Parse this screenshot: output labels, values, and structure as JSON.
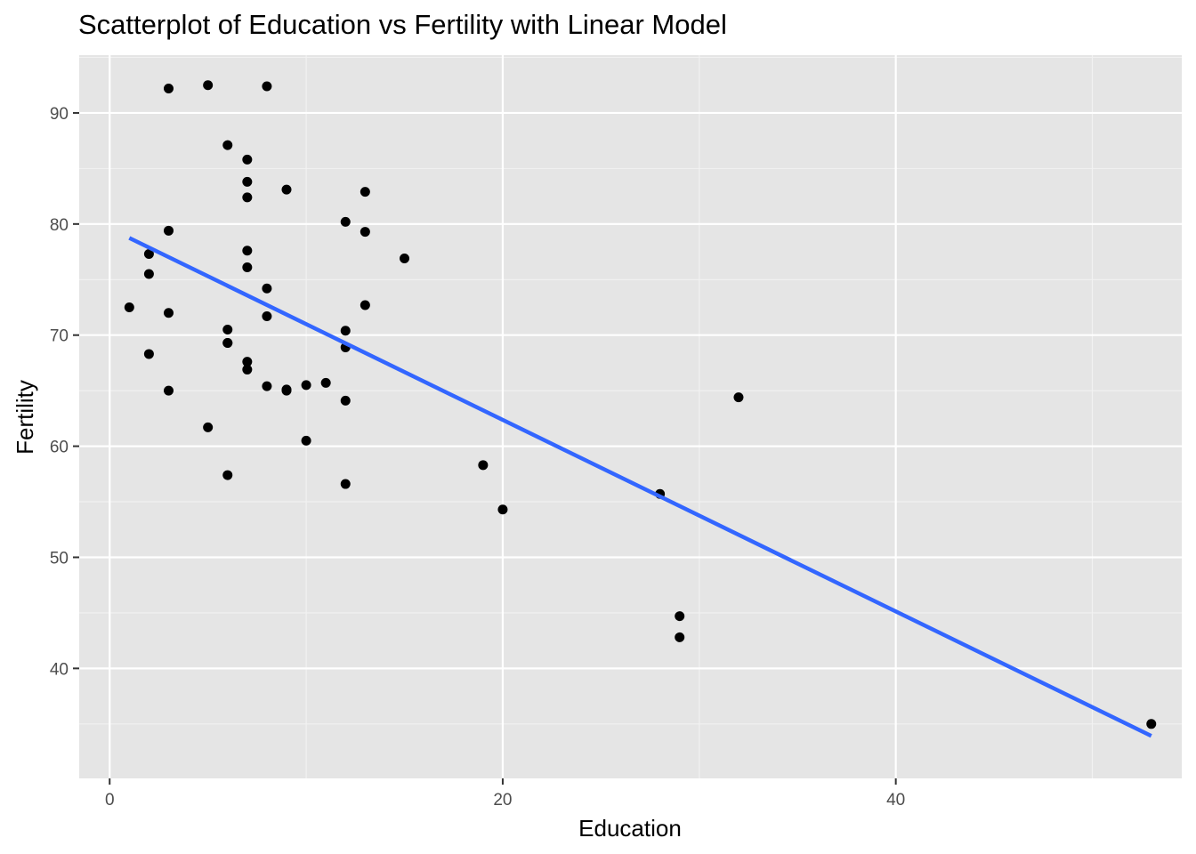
{
  "chart_data": {
    "type": "scatter",
    "title": "Scatterplot of Education vs Fertility with Linear Model",
    "xlabel": "Education",
    "ylabel": "Fertility",
    "xlim": [
      -1.55,
      54.55
    ],
    "ylim": [
      30.1,
      95.2
    ],
    "x_ticks": [
      0,
      20,
      40
    ],
    "x_tick_labels": [
      "0",
      "20",
      "40"
    ],
    "x_minor_ticks": [
      10,
      30,
      50
    ],
    "y_ticks": [
      40,
      50,
      60,
      70,
      80,
      90
    ],
    "y_tick_labels": [
      "40",
      "50",
      "60",
      "70",
      "80",
      "90"
    ],
    "y_minor_ticks": [
      35,
      45,
      55,
      65,
      75,
      85,
      95
    ],
    "grid": true,
    "background": "#e5e5e5",
    "point_color": "#000000",
    "line_color": "#3366ff",
    "points": [
      {
        "x": 12,
        "y": 80.2
      },
      {
        "x": 9,
        "y": 83.1
      },
      {
        "x": 5,
        "y": 92.5
      },
      {
        "x": 7,
        "y": 85.8
      },
      {
        "x": 15,
        "y": 76.9
      },
      {
        "x": 7,
        "y": 76.1
      },
      {
        "x": 7,
        "y": 83.8
      },
      {
        "x": 8,
        "y": 92.4
      },
      {
        "x": 7,
        "y": 82.4
      },
      {
        "x": 13,
        "y": 82.9
      },
      {
        "x": 6,
        "y": 87.1
      },
      {
        "x": 12,
        "y": 64.1
      },
      {
        "x": 7,
        "y": 66.9
      },
      {
        "x": 12,
        "y": 68.9
      },
      {
        "x": 5,
        "y": 61.7
      },
      {
        "x": 2,
        "y": 68.3
      },
      {
        "x": 8,
        "y": 71.7
      },
      {
        "x": 28,
        "y": 55.7
      },
      {
        "x": 20,
        "y": 54.3
      },
      {
        "x": 9,
        "y": 65.1
      },
      {
        "x": 10,
        "y": 65.5
      },
      {
        "x": 3,
        "y": 65.0
      },
      {
        "x": 12,
        "y": 56.6
      },
      {
        "x": 6,
        "y": 57.4
      },
      {
        "x": 1,
        "y": 72.5
      },
      {
        "x": 8,
        "y": 74.2
      },
      {
        "x": 3,
        "y": 72.0
      },
      {
        "x": 10,
        "y": 60.5
      },
      {
        "x": 19,
        "y": 58.3
      },
      {
        "x": 8,
        "y": 65.4
      },
      {
        "x": 2,
        "y": 75.5
      },
      {
        "x": 6,
        "y": 69.3
      },
      {
        "x": 2,
        "y": 77.3
      },
      {
        "x": 6,
        "y": 70.5
      },
      {
        "x": 3,
        "y": 79.4
      },
      {
        "x": 9,
        "y": 65.0
      },
      {
        "x": 3,
        "y": 92.2
      },
      {
        "x": 13,
        "y": 79.3
      },
      {
        "x": 12,
        "y": 70.4
      },
      {
        "x": 6,
        "y": 69.3
      },
      {
        "x": 11,
        "y": 65.7
      },
      {
        "x": 13,
        "y": 72.7
      },
      {
        "x": 7,
        "y": 77.6
      },
      {
        "x": 7,
        "y": 67.6
      },
      {
        "x": 32,
        "y": 64.4
      },
      {
        "x": 53,
        "y": 35.0
      },
      {
        "x": 29,
        "y": 44.7
      },
      {
        "x": 29,
        "y": 42.8
      }
    ],
    "fit_line": {
      "label": "Linear Model",
      "intercept": 79.61,
      "slope": -0.862,
      "x_range": [
        1,
        53
      ]
    }
  }
}
